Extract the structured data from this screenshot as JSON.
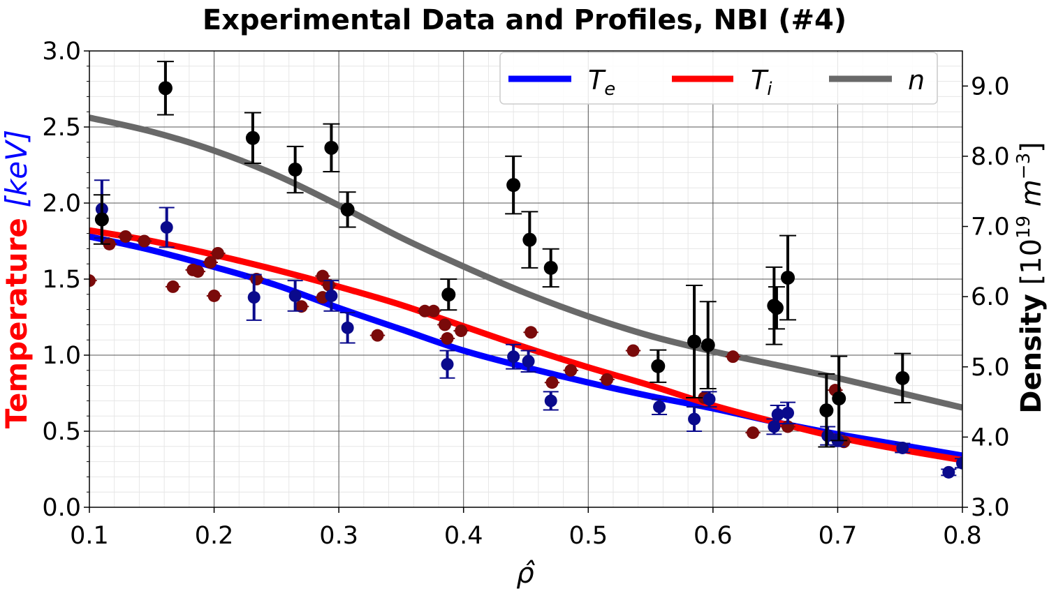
{
  "chart_data": {
    "type": "scatter",
    "title": "Experimental Data and Profiles, NBI (#4)",
    "xlabel": "ρ̂",
    "ylabel_left": {
      "temperature": "Temperature",
      "unit": "[keV]"
    },
    "ylabel_right": {
      "density": "Density",
      "unit_prefix": "[10",
      "exp": "19",
      "unit_m": " m",
      "unit_exp": "−3",
      "close": "]"
    },
    "xlim": [
      0.1,
      0.8
    ],
    "ylim_left": [
      0.0,
      3.0
    ],
    "ylim_right": [
      3.0,
      9.5
    ],
    "x_ticks": [
      "0.1",
      "0.2",
      "0.3",
      "0.4",
      "0.5",
      "0.6",
      "0.7",
      "0.8"
    ],
    "y_left_ticks": [
      "0.0",
      "0.5",
      "1.0",
      "1.5",
      "2.0",
      "2.5",
      "3.0"
    ],
    "y_right_ticks": [
      "3.0",
      "4.0",
      "5.0",
      "6.0",
      "7.0",
      "8.0",
      "9.0"
    ],
    "grid": true,
    "legend_position": "top-right",
    "colors": {
      "Te": "#0000ff",
      "Ti": "#ff0000",
      "n": "#696969",
      "Te_points": "#0a0a8c",
      "Ti_points": "#7a0a0a",
      "n_points": "#000000"
    },
    "legend": [
      {
        "key": "Te",
        "label": "T",
        "sub": "e"
      },
      {
        "key": "Ti",
        "label": "T",
        "sub": "i"
      },
      {
        "key": "n",
        "label": "n",
        "sub": ""
      }
    ],
    "series_lines": [
      {
        "name": "Te",
        "axis": "left",
        "x": [
          0.1,
          0.15,
          0.2,
          0.25,
          0.3,
          0.35,
          0.4,
          0.45,
          0.5,
          0.55,
          0.6,
          0.65,
          0.7,
          0.75,
          0.8
        ],
        "y": [
          1.78,
          1.69,
          1.58,
          1.46,
          1.31,
          1.17,
          1.03,
          0.92,
          0.82,
          0.73,
          0.65,
          0.56,
          0.48,
          0.41,
          0.34
        ]
      },
      {
        "name": "Ti",
        "axis": "left",
        "x": [
          0.1,
          0.15,
          0.2,
          0.25,
          0.3,
          0.35,
          0.4,
          0.45,
          0.5,
          0.55,
          0.6,
          0.65,
          0.7,
          0.75,
          0.8
        ],
        "y": [
          1.82,
          1.75,
          1.66,
          1.56,
          1.45,
          1.33,
          1.19,
          1.05,
          0.92,
          0.8,
          0.67,
          0.56,
          0.46,
          0.38,
          0.31
        ]
      },
      {
        "name": "n",
        "axis": "right",
        "x": [
          0.1,
          0.15,
          0.2,
          0.25,
          0.3,
          0.35,
          0.4,
          0.45,
          0.5,
          0.55,
          0.6,
          0.65,
          0.7,
          0.75,
          0.8
        ],
        "y": [
          8.55,
          8.35,
          8.08,
          7.73,
          7.3,
          6.84,
          6.43,
          6.05,
          5.72,
          5.44,
          5.22,
          5.03,
          4.84,
          4.63,
          4.42
        ]
      }
    ],
    "Te_points": [
      {
        "x": 0.11,
        "y": 1.96,
        "err": 0.19
      },
      {
        "x": 0.162,
        "y": 1.84,
        "err": 0.13
      },
      {
        "x": 0.232,
        "y": 1.38,
        "err": 0.15
      },
      {
        "x": 0.265,
        "y": 1.39,
        "err": 0.1
      },
      {
        "x": 0.294,
        "y": 1.39,
        "err": 0.1
      },
      {
        "x": 0.307,
        "y": 1.18,
        "err": 0.1
      },
      {
        "x": 0.387,
        "y": 0.94,
        "err": 0.09
      },
      {
        "x": 0.44,
        "y": 0.99,
        "err": 0.08
      },
      {
        "x": 0.452,
        "y": 0.96,
        "err": 0.07
      },
      {
        "x": 0.47,
        "y": 0.7,
        "err": 0.06
      },
      {
        "x": 0.557,
        "y": 0.66,
        "err": 0.05
      },
      {
        "x": 0.585,
        "y": 0.58,
        "err": 0.08
      },
      {
        "x": 0.597,
        "y": 0.71,
        "err": 0.05
      },
      {
        "x": 0.649,
        "y": 0.53,
        "err": 0.05
      },
      {
        "x": 0.652,
        "y": 0.61,
        "err": 0.06
      },
      {
        "x": 0.66,
        "y": 0.62,
        "err": 0.07
      },
      {
        "x": 0.692,
        "y": 0.47,
        "err": 0.06
      },
      {
        "x": 0.7,
        "y": 0.44,
        "err": 0.04
      },
      {
        "x": 0.752,
        "y": 0.39,
        "err": 0.03
      },
      {
        "x": 0.789,
        "y": 0.23,
        "err": 0.02
      },
      {
        "x": 0.8,
        "y": 0.29,
        "err": 0.03
      }
    ],
    "Ti_points": [
      {
        "x": 0.1,
        "y": 1.49,
        "xerr": 0.006
      },
      {
        "x": 0.116,
        "y": 1.73,
        "xerr": 0.006
      },
      {
        "x": 0.129,
        "y": 1.78,
        "xerr": 0.006
      },
      {
        "x": 0.144,
        "y": 1.75,
        "xerr": 0.006
      },
      {
        "x": 0.167,
        "y": 1.45,
        "xerr": 0.006
      },
      {
        "x": 0.183,
        "y": 1.56,
        "xerr": 0.006
      },
      {
        "x": 0.187,
        "y": 1.55,
        "xerr": 0.006
      },
      {
        "x": 0.197,
        "y": 1.61,
        "xerr": 0.006
      },
      {
        "x": 0.2,
        "y": 1.39,
        "xerr": 0.006
      },
      {
        "x": 0.203,
        "y": 1.67,
        "xerr": 0.006
      },
      {
        "x": 0.234,
        "y": 1.5,
        "xerr": 0.006
      },
      {
        "x": 0.27,
        "y": 1.32,
        "xerr": 0.006
      },
      {
        "x": 0.287,
        "y": 1.52,
        "xerr": 0.006
      },
      {
        "x": 0.287,
        "y": 1.38,
        "xerr": 0.006
      },
      {
        "x": 0.292,
        "y": 1.46,
        "xerr": 0.006
      },
      {
        "x": 0.331,
        "y": 1.13,
        "xerr": 0.006
      },
      {
        "x": 0.369,
        "y": 1.29,
        "xerr": 0.006
      },
      {
        "x": 0.376,
        "y": 1.29,
        "xerr": 0.006
      },
      {
        "x": 0.385,
        "y": 1.2,
        "xerr": 0.006
      },
      {
        "x": 0.387,
        "y": 1.11,
        "xerr": 0.006
      },
      {
        "x": 0.398,
        "y": 1.16,
        "xerr": 0.006
      },
      {
        "x": 0.454,
        "y": 1.15,
        "xerr": 0.006
      },
      {
        "x": 0.471,
        "y": 0.82,
        "xerr": 0.006
      },
      {
        "x": 0.486,
        "y": 0.9,
        "xerr": 0.006
      },
      {
        "x": 0.515,
        "y": 0.84,
        "xerr": 0.006
      },
      {
        "x": 0.536,
        "y": 1.03,
        "xerr": 0.006
      },
      {
        "x": 0.593,
        "y": 0.72,
        "xerr": 0.006
      },
      {
        "x": 0.616,
        "y": 0.99,
        "xerr": 0.006
      },
      {
        "x": 0.632,
        "y": 0.49,
        "xerr": 0.006
      },
      {
        "x": 0.66,
        "y": 0.53,
        "xerr": 0.006
      },
      {
        "x": 0.698,
        "y": 0.77,
        "xerr": 0.006
      },
      {
        "x": 0.705,
        "y": 0.43,
        "xerr": 0.006
      }
    ],
    "n_points": [
      {
        "x": 0.11,
        "y": 7.1,
        "err": 0.35
      },
      {
        "x": 0.161,
        "y": 8.97,
        "err": 0.38
      },
      {
        "x": 0.231,
        "y": 8.26,
        "err": 0.36
      },
      {
        "x": 0.265,
        "y": 7.81,
        "err": 0.33
      },
      {
        "x": 0.294,
        "y": 8.12,
        "err": 0.34
      },
      {
        "x": 0.307,
        "y": 7.24,
        "err": 0.25
      },
      {
        "x": 0.388,
        "y": 6.03,
        "err": 0.22
      },
      {
        "x": 0.44,
        "y": 7.59,
        "err": 0.41
      },
      {
        "x": 0.453,
        "y": 6.81,
        "err": 0.4
      },
      {
        "x": 0.47,
        "y": 6.41,
        "err": 0.27
      },
      {
        "x": 0.556,
        "y": 5.01,
        "err": 0.23
      },
      {
        "x": 0.585,
        "y": 5.36,
        "err": 0.8
      },
      {
        "x": 0.596,
        "y": 5.31,
        "err": 0.62
      },
      {
        "x": 0.649,
        "y": 5.87,
        "err": 0.55
      },
      {
        "x": 0.651,
        "y": 5.84,
        "err": 0.3
      },
      {
        "x": 0.66,
        "y": 6.27,
        "err": 0.6
      },
      {
        "x": 0.691,
        "y": 4.38,
        "err": 0.52
      },
      {
        "x": 0.701,
        "y": 4.55,
        "err": 0.6
      },
      {
        "x": 0.752,
        "y": 4.84,
        "err": 0.35
      }
    ]
  }
}
